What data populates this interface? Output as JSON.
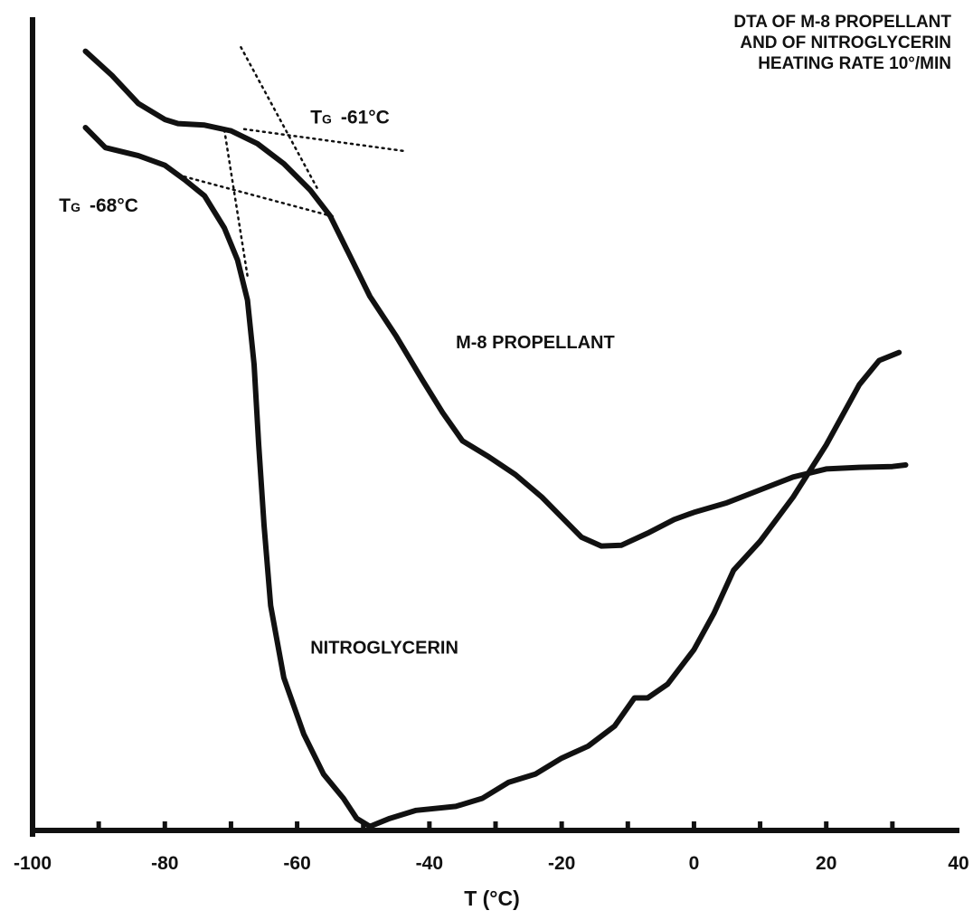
{
  "chart_data": {
    "type": "line",
    "title_lines": [
      "DTA OF M-8 PROPELLANT",
      "AND OF NITROGLYCERIN",
      "HEATING RATE 10°/MIN"
    ],
    "xlabel": "T (°C)",
    "ylabel": "",
    "xlim": [
      -100,
      40
    ],
    "ylim": [
      0,
      100
    ],
    "x_ticks": [
      -100,
      -80,
      -60,
      -40,
      -20,
      0,
      20,
      40
    ],
    "x_minor_ticks": [
      -90,
      -80,
      -70,
      -60,
      -50,
      -40,
      -30,
      -20,
      -10,
      0,
      10,
      20,
      30
    ],
    "grid": false,
    "series": [
      {
        "name": "M-8 PROPELLANT",
        "label_at": [
          -36,
          60
        ],
        "points": [
          [
            -92,
            97
          ],
          [
            -88,
            94
          ],
          [
            -84,
            90.5
          ],
          [
            -80,
            88.5
          ],
          [
            -78,
            88
          ],
          [
            -74,
            87.8
          ],
          [
            -70,
            87.1
          ],
          [
            -66,
            85.5
          ],
          [
            -62,
            83
          ],
          [
            -58,
            79.7
          ],
          [
            -55,
            76.5
          ],
          [
            -52,
            71.5
          ],
          [
            -49,
            66.5
          ],
          [
            -45,
            61.5
          ],
          [
            -41,
            56
          ],
          [
            -38,
            52
          ],
          [
            -35,
            48.5
          ],
          [
            -31,
            46.5
          ],
          [
            -27,
            44.3
          ],
          [
            -23,
            41.5
          ],
          [
            -20,
            39
          ],
          [
            -17,
            36.5
          ],
          [
            -14,
            35.4
          ],
          [
            -11,
            35.5
          ],
          [
            -7,
            37
          ],
          [
            -3,
            38.7
          ],
          [
            0,
            39.6
          ],
          [
            5,
            40.8
          ],
          [
            10,
            42.4
          ],
          [
            15,
            44
          ],
          [
            20,
            45
          ],
          [
            25,
            45.2
          ],
          [
            30,
            45.3
          ],
          [
            32,
            45.5
          ]
        ]
      },
      {
        "name": "NITROGLYCERIN",
        "label_at": [
          -58,
          22
        ],
        "points": [
          [
            -92,
            87.5
          ],
          [
            -89,
            85
          ],
          [
            -84,
            84
          ],
          [
            -80,
            82.8
          ],
          [
            -77,
            81
          ],
          [
            -74,
            79
          ],
          [
            -71,
            75
          ],
          [
            -69,
            71
          ],
          [
            -67.5,
            66
          ],
          [
            -66.5,
            58
          ],
          [
            -65.8,
            48
          ],
          [
            -65,
            38
          ],
          [
            -64,
            28
          ],
          [
            -62,
            19
          ],
          [
            -59,
            12
          ],
          [
            -56,
            7
          ],
          [
            -53,
            4
          ],
          [
            -51,
            1.5
          ],
          [
            -49,
            0.5
          ],
          [
            -46,
            1.5
          ],
          [
            -42,
            2.5
          ],
          [
            -36,
            3
          ],
          [
            -32,
            4
          ],
          [
            -28,
            6
          ],
          [
            -24,
            7
          ],
          [
            -20,
            9
          ],
          [
            -16,
            10.5
          ],
          [
            -12,
            13
          ],
          [
            -9,
            16.5
          ],
          [
            -7,
            16.5
          ],
          [
            -4,
            18.2
          ],
          [
            0,
            22.5
          ],
          [
            3,
            27
          ],
          [
            6,
            32.4
          ],
          [
            10,
            36
          ],
          [
            15,
            41.5
          ],
          [
            20,
            48
          ],
          [
            25,
            55.5
          ],
          [
            28,
            58.5
          ],
          [
            31,
            59.5
          ]
        ]
      }
    ],
    "annotations": [
      {
        "text_main": "T",
        "text_sub": "G",
        "text_value": "-61°C",
        "at": [
          -58,
          88
        ]
      },
      {
        "text_main": "T",
        "text_sub": "G",
        "text_value": "-68°C",
        "at": [
          -96,
          77
        ]
      }
    ],
    "tangent_lines": [
      {
        "from": [
          -68,
          87.3
        ],
        "to": [
          -44,
          84.6
        ]
      },
      {
        "from": [
          -68.5,
          97.5
        ],
        "to": [
          -57,
          80
        ]
      },
      {
        "from": [
          -78,
          81.6
        ],
        "to": [
          -54,
          76.3
        ]
      },
      {
        "from": [
          -71,
          87.2
        ],
        "to": [
          -67.5,
          69
        ]
      }
    ]
  }
}
